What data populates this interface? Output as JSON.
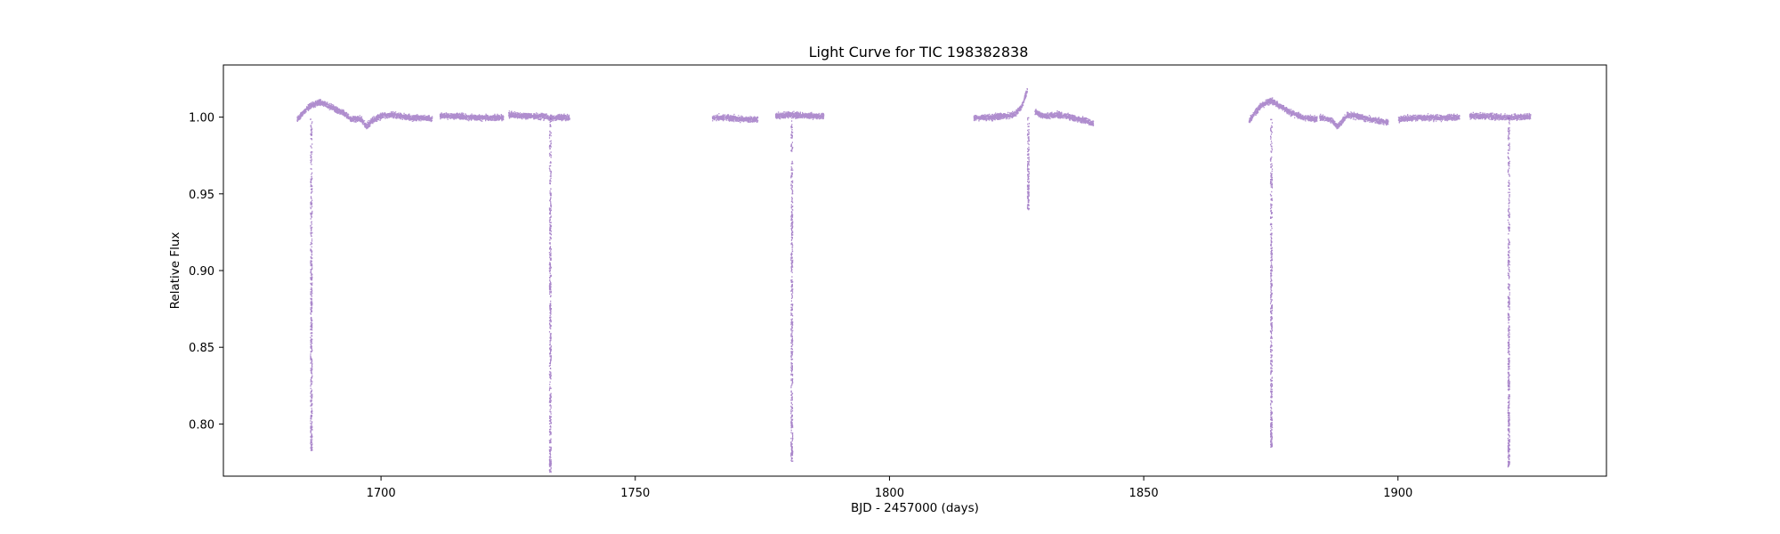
{
  "chart_data": {
    "type": "scatter",
    "title": "Light Curve for TIC 198382838",
    "xlabel": "BJD - 2457000 (days)",
    "ylabel": "Relative Flux",
    "xlim": [
      1669,
      1941
    ],
    "ylim": [
      0.766,
      1.034
    ],
    "xticks": [
      1700,
      1750,
      1800,
      1850,
      1900
    ],
    "yticks": [
      0.8,
      0.85,
      0.9,
      0.95,
      1.0
    ],
    "grid": false,
    "legend": "none",
    "point_color": "#9467bd",
    "segments": [
      {
        "x": [
          1683.4,
          1686.0,
          1688.0,
          1690.0,
          1692.5,
          1694.0,
          1696.0,
          1697.0,
          1698.0,
          1700.0,
          1702.0,
          1704.0,
          1706.0,
          1708.0,
          1710.0
        ],
        "y": [
          0.999,
          1.008,
          1.01,
          1.007,
          1.003,
          0.999,
          0.999,
          0.994,
          0.998,
          1.001,
          1.002,
          1.001,
          1.0,
          1.0,
          0.999
        ]
      },
      {
        "x": [
          1711.5,
          1715.0,
          1718.0,
          1721.0,
          1724.0
        ],
        "y": [
          1.001,
          1.001,
          1.0,
          1.0,
          1.0
        ]
      },
      {
        "x": [
          1725.0,
          1728.0,
          1731.0,
          1734.0,
          1737.0
        ],
        "y": [
          1.002,
          1.001,
          1.001,
          1.0,
          1.0
        ]
      },
      {
        "x": [
          1765.0,
          1768.0,
          1771.0,
          1774.0
        ],
        "y": [
          1.0,
          1.0,
          0.999,
          0.999
        ]
      },
      {
        "x": [
          1777.5,
          1781.0,
          1784.0,
          1787.0
        ],
        "y": [
          1.001,
          1.002,
          1.001,
          1.001
        ]
      },
      {
        "x": [
          1816.5,
          1819.0,
          1822.0,
          1824.5,
          1826.0,
          1827.0
        ],
        "y": [
          1.0,
          1.0,
          1.001,
          1.002,
          1.008,
          1.018
        ]
      },
      {
        "x": [
          1828.5,
          1830.0,
          1833.0,
          1836.0,
          1838.5,
          1840.0
        ],
        "y": [
          1.004,
          1.001,
          1.002,
          1.0,
          0.998,
          0.996
        ]
      },
      {
        "x": [
          1870.6,
          1873.0,
          1875.0,
          1877.0,
          1879.0,
          1881.5,
          1884.0
        ],
        "y": [
          0.998,
          1.008,
          1.011,
          1.007,
          1.003,
          1.0,
          0.999
        ]
      },
      {
        "x": [
          1884.5,
          1887.0,
          1888.0,
          1890.0,
          1893.0,
          1896.0,
          1898.0
        ],
        "y": [
          1.0,
          0.998,
          0.994,
          1.002,
          1.0,
          0.998,
          0.997
        ]
      },
      {
        "x": [
          1900.0,
          1904.0,
          1908.0,
          1912.0
        ],
        "y": [
          0.999,
          1.0,
          1.0,
          1.0
        ]
      },
      {
        "x": [
          1914.0,
          1918.0,
          1922.0,
          1926.0
        ],
        "y": [
          1.001,
          1.001,
          1.0,
          1.001
        ]
      }
    ],
    "transits": [
      {
        "x": 1686.2,
        "depth_min": 0.783
      },
      {
        "x": 1733.2,
        "depth_min": 0.769
      },
      {
        "x": 1780.7,
        "depth_min": 0.776
      },
      {
        "x": 1827.2,
        "depth_min": 0.94
      },
      {
        "x": 1875.0,
        "depth_min": 0.785
      },
      {
        "x": 1921.7,
        "depth_min": 0.772
      }
    ]
  }
}
